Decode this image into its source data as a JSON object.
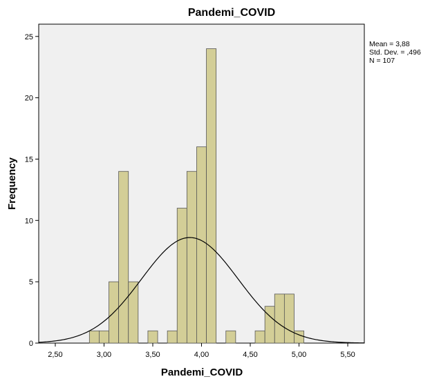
{
  "chart_data": {
    "type": "bar",
    "subtype": "histogram",
    "title": "Pandemi_COVID",
    "xlabel": "Pandemi_COVID",
    "ylabel": "Frequency",
    "xlim": [
      2.33,
      5.67
    ],
    "ylim": [
      0,
      26
    ],
    "grid": false,
    "background_color": "#F0F0F0",
    "bar_color": "#D3CE97",
    "bar_edge_color": "#555555",
    "curve_color": "#000000",
    "xticks": [
      2.5,
      3.0,
      3.5,
      4.0,
      4.5,
      5.0,
      5.5
    ],
    "xtick_labels": [
      "2,50",
      "3,00",
      "3,50",
      "4,00",
      "4,50",
      "5,00",
      "5,50"
    ],
    "yticks": [
      0,
      5,
      10,
      15,
      20,
      25
    ],
    "ytick_labels": [
      "0",
      "5",
      "10",
      "15",
      "20",
      "25"
    ],
    "bin_width": 0.1,
    "bins": [
      {
        "start": 2.85,
        "count": 1
      },
      {
        "start": 2.95,
        "count": 1
      },
      {
        "start": 3.05,
        "count": 5
      },
      {
        "start": 3.15,
        "count": 14
      },
      {
        "start": 3.25,
        "count": 5
      },
      {
        "start": 3.45,
        "count": 1
      },
      {
        "start": 3.65,
        "count": 1
      },
      {
        "start": 3.75,
        "count": 11
      },
      {
        "start": 3.85,
        "count": 14
      },
      {
        "start": 3.95,
        "count": 16
      },
      {
        "start": 4.05,
        "count": 24
      },
      {
        "start": 4.25,
        "count": 1
      },
      {
        "start": 4.55,
        "count": 1
      },
      {
        "start": 4.65,
        "count": 3
      },
      {
        "start": 4.75,
        "count": 4
      },
      {
        "start": 4.85,
        "count": 4
      },
      {
        "start": 4.95,
        "count": 1
      }
    ],
    "normal_curve": {
      "mean": 3.88,
      "std": 0.496,
      "n": 107
    },
    "legend_position": "right-top",
    "stats_lines": [
      "Mean = 3,88",
      "Std. Dev. = ,496",
      "N = 107"
    ]
  }
}
